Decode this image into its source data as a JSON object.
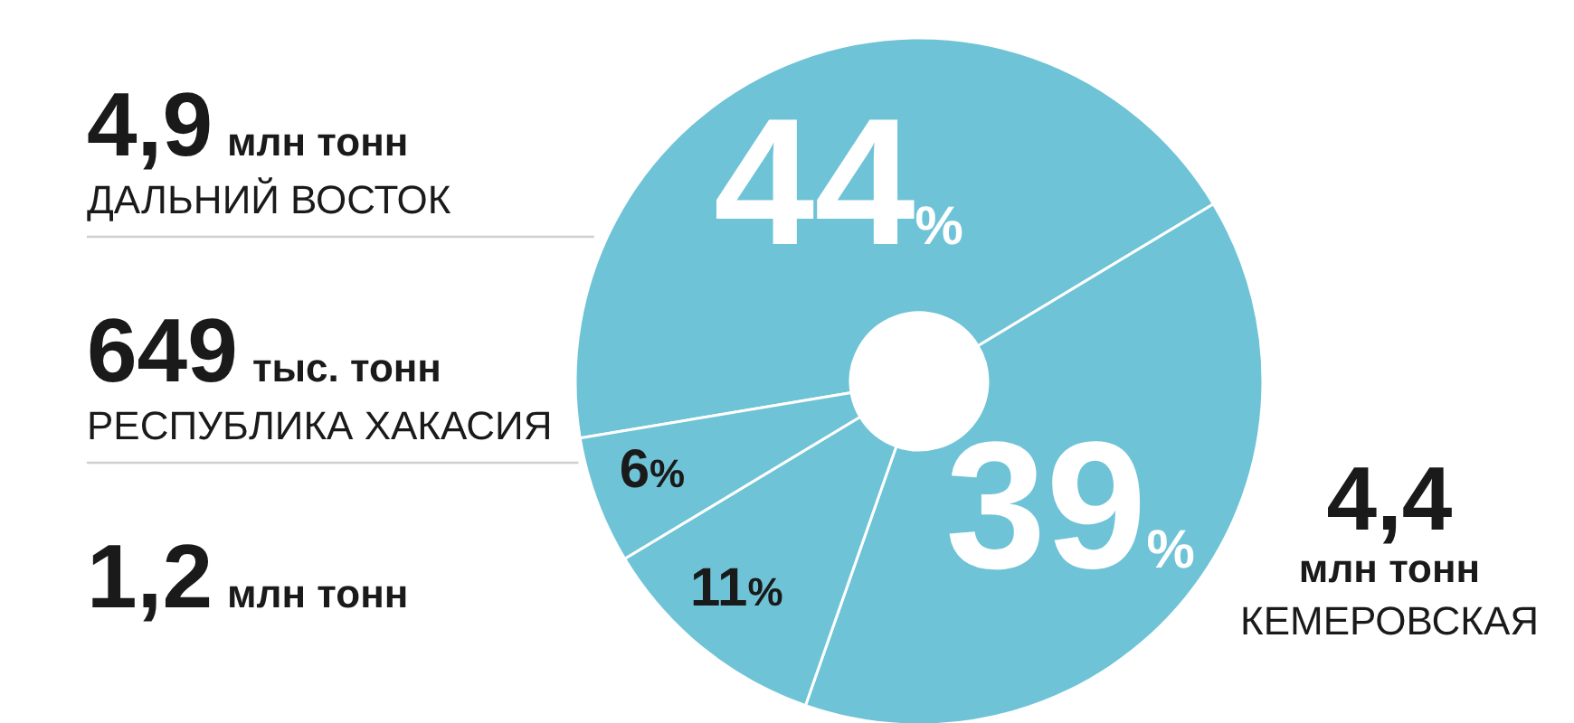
{
  "chart_data": {
    "type": "donut",
    "categories": [
      "ДАЛЬНИЙ ВОСТОК",
      "КЕМЕРОВСКАЯ",
      null,
      "РЕСПУБЛИКА ХАКАСИЯ"
    ],
    "values": [
      44,
      39,
      11,
      6
    ],
    "colors": [
      "#6ec3d7",
      "#6ec3d7",
      "#6ec3d7",
      "#6ec3d7"
    ],
    "value_labels": [
      "44%",
      "39%",
      "11%",
      "6%"
    ],
    "annotations": [
      "4,9 млн тонн",
      "4,4 млн тонн",
      "1,2 млн тонн",
      "649 тыс. тонн"
    ]
  }
}
